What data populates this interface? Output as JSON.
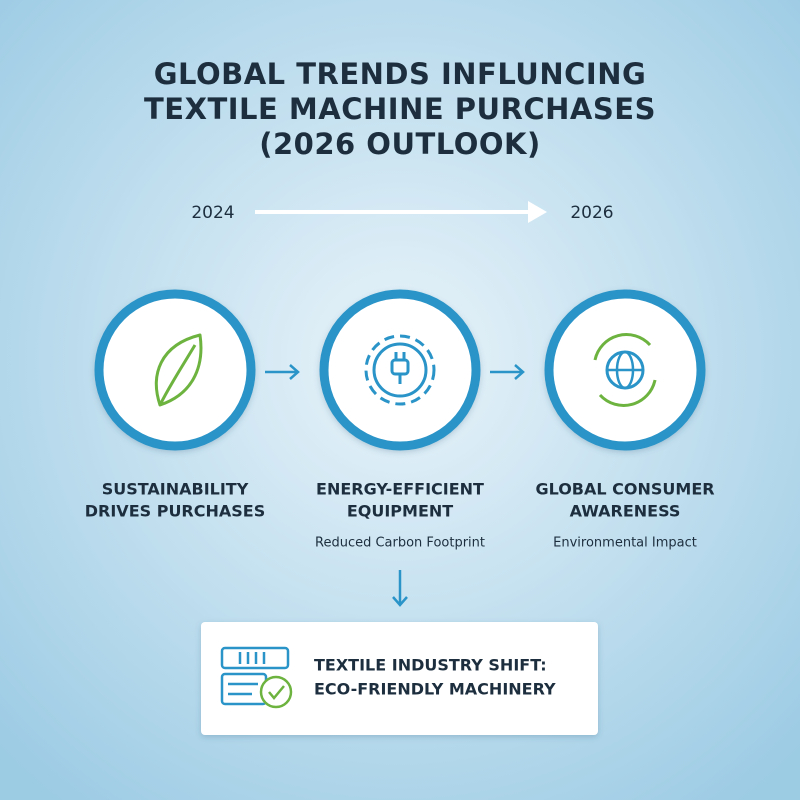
{
  "title": [
    "GLOBAL TRENDS INFLUNCING",
    "TEXTILE MACHINE PURCHASES",
    "(2026 OUTLOOK)"
  ],
  "timeline": {
    "start": "2024",
    "end": "2026"
  },
  "nodes": [
    {
      "label": [
        "SUSTAINABILITY",
        "DRIVES PURCHASES"
      ]
    },
    {
      "label": [
        "ENERGY-EFFICIENT",
        "EQUIPMENT"
      ],
      "sublabel": "Reduced Carbon Footprint"
    },
    {
      "label": [
        "GLOBAL CONSUMER",
        "AWARENESS"
      ],
      "sublabel": "Environmental Impact"
    }
  ],
  "result": {
    "label": [
      "TEXTILE INDUSTRY SHIFT:",
      "ECO-FRIENDLY MACHINERY"
    ]
  }
}
